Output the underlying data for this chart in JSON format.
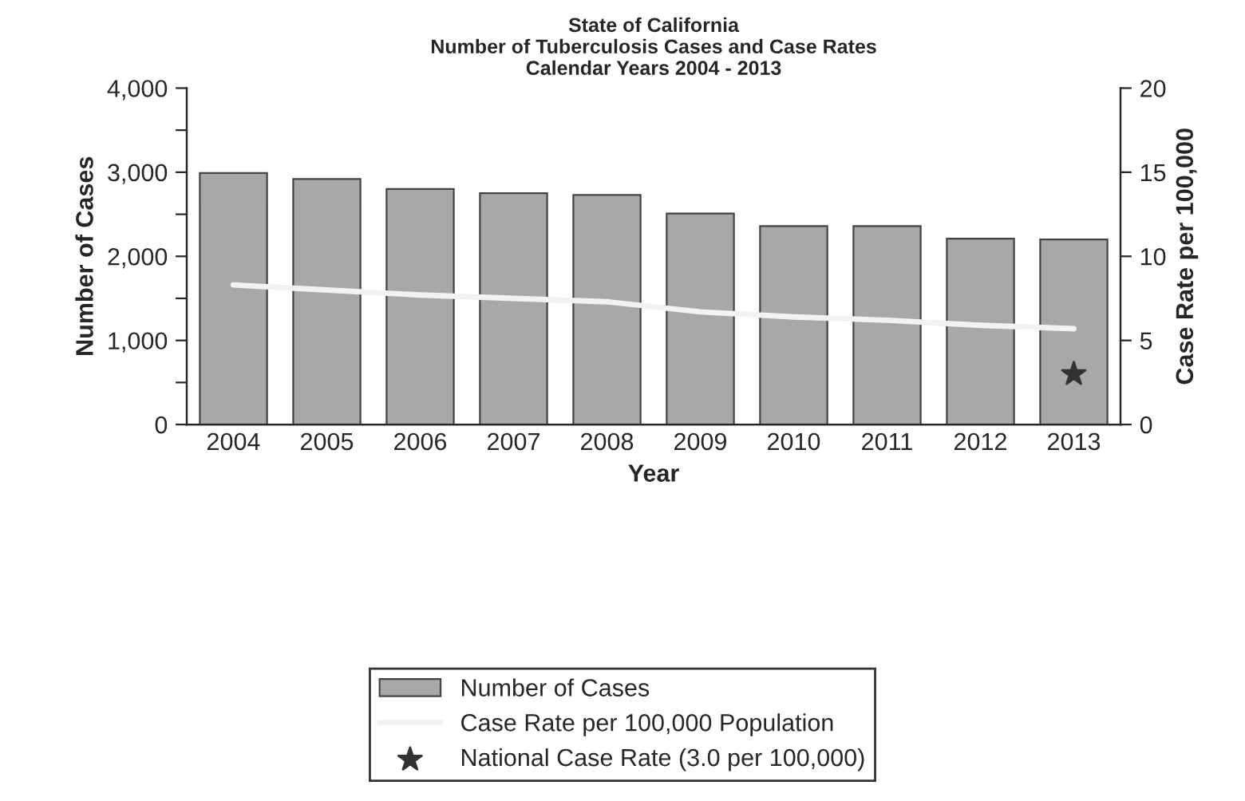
{
  "chart_data": {
    "type": "bar",
    "title": "State of California\nNumber of Tuberculosis Cases and Case Rates\nCalendar Years 2004 - 2013",
    "xlabel": "Year",
    "ylabel": "Number of Cases",
    "y2label": "Case Rate per 100,000",
    "categories": [
      "2004",
      "2005",
      "2006",
      "2007",
      "2008",
      "2009",
      "2010",
      "2011",
      "2012",
      "2013"
    ],
    "series": [
      {
        "name": "Number of Cases",
        "color": "#a8a8a8",
        "values": [
          2990,
          2920,
          2800,
          2750,
          2730,
          2510,
          2360,
          2360,
          2210,
          2200
        ]
      },
      {
        "name": "Case Rate per 100,000 Population",
        "type": "line",
        "axis": "y2",
        "color": "#f2f2f2",
        "values": [
          8.3,
          8.0,
          7.7,
          7.5,
          7.3,
          6.7,
          6.4,
          6.2,
          5.9,
          5.7
        ]
      },
      {
        "name": "National Case Rate (3.0 per 100,000)",
        "type": "scatter",
        "axis": "y2",
        "marker": "star",
        "color": "#333333",
        "values": [
          null,
          null,
          null,
          null,
          null,
          null,
          null,
          null,
          null,
          3.0
        ]
      }
    ],
    "ylim": [
      0,
      4000
    ],
    "yticks": [
      0,
      {
        "value": 500,
        "label": null
      },
      {
        "value": 1000,
        "label": "1,000"
      },
      {
        "value": 1500,
        "label": null
      },
      {
        "value": 2000,
        "label": "2,000"
      },
      {
        "value": 2500,
        "label": null
      },
      {
        "value": 3000,
        "label": "3,000"
      },
      {
        "value": 3500,
        "label": null
      },
      {
        "value": 4000,
        "label": "4,000"
      }
    ],
    "y2lim": [
      0,
      20
    ],
    "y2ticks": [
      0,
      5,
      10,
      15,
      20
    ],
    "legend": "bottom",
    "grid": false
  }
}
